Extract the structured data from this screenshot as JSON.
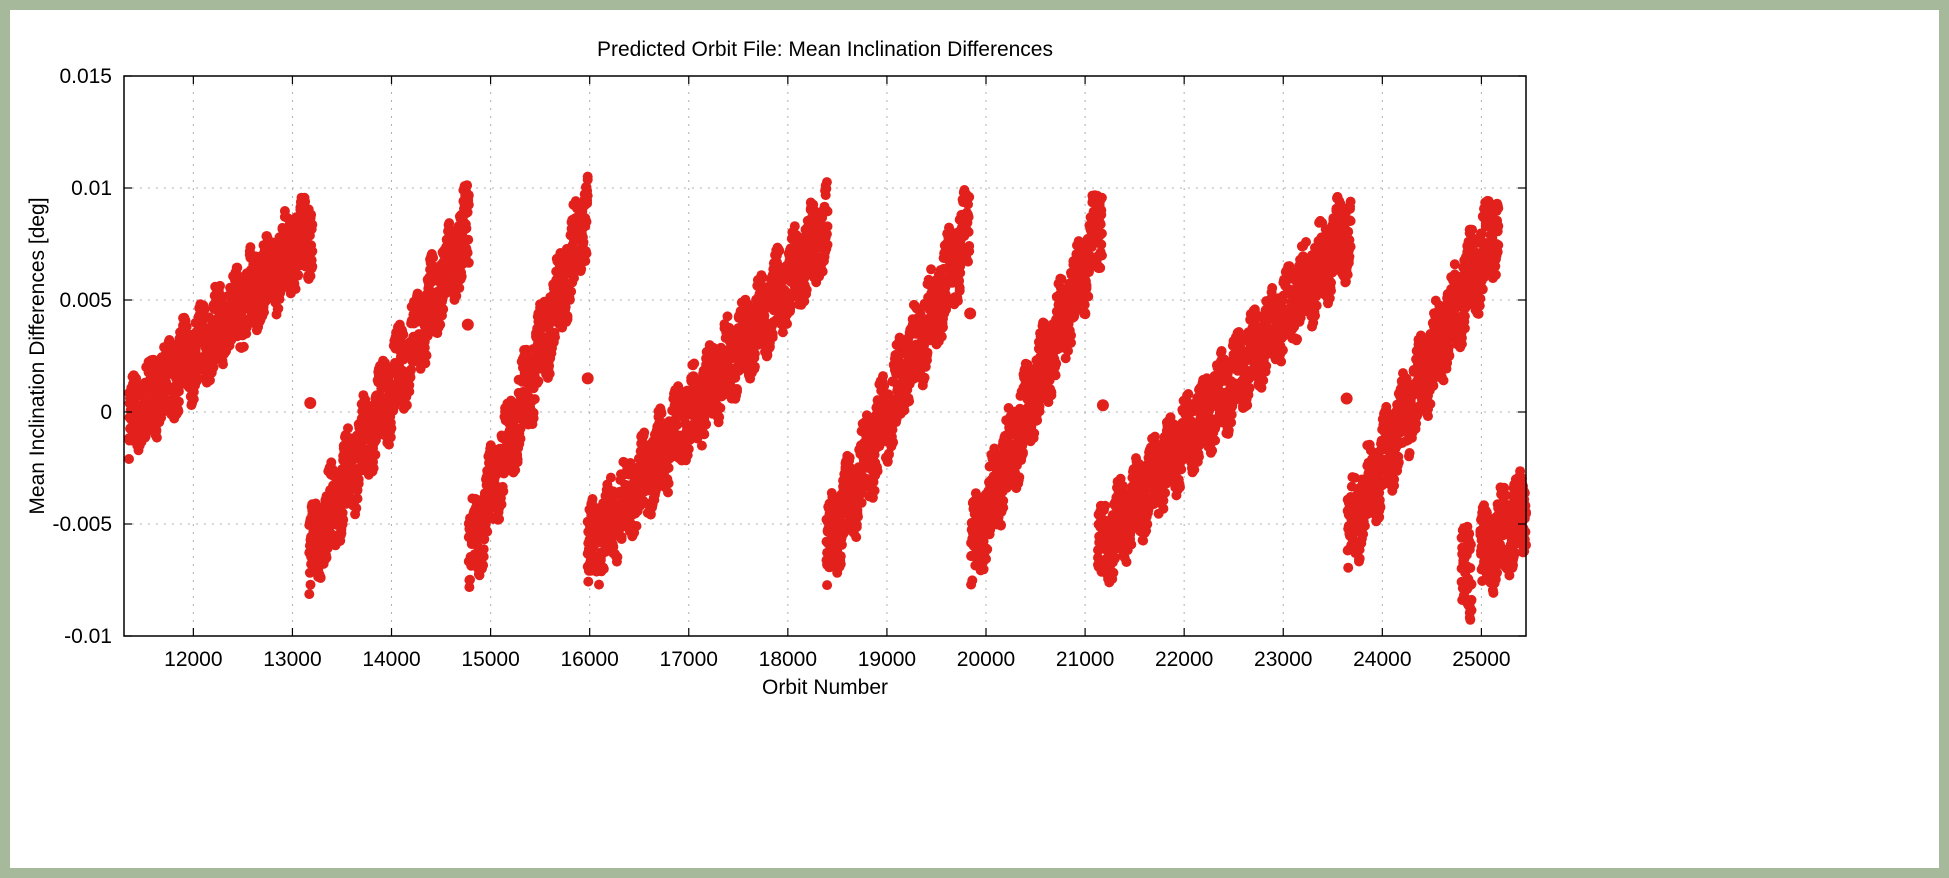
{
  "colors": {
    "frame_border": "#a6b99a",
    "background": "#ffffff",
    "series": "#e3211c",
    "grid": "#b0b0b0"
  },
  "chart_data": {
    "type": "scatter",
    "title": "Predicted Orbit File: Mean Inclination Differences",
    "xlabel": "Orbit Number",
    "ylabel": "Mean Inclination Differences [deg]",
    "xlim": [
      11300,
      25450
    ],
    "ylim": [
      -0.01,
      0.015
    ],
    "x_ticks": [
      12000,
      13000,
      14000,
      15000,
      16000,
      17000,
      18000,
      19000,
      20000,
      21000,
      22000,
      23000,
      24000,
      25000
    ],
    "x_tick_labels": [
      "12000",
      "13000",
      "14000",
      "15000",
      "16000",
      "17000",
      "18000",
      "19000",
      "20000",
      "21000",
      "22000",
      "23000",
      "24000",
      "25000"
    ],
    "y_ticks": [
      -0.01,
      -0.005,
      0,
      0.005,
      0.01,
      0.015
    ],
    "y_tick_labels": [
      "-0.01",
      "-0.005",
      "0",
      "0.005",
      "0.01",
      "0.015"
    ],
    "grid": true,
    "marker": "filled-circle",
    "series": [
      {
        "color": "#e3211c",
        "segments": [
          {
            "x": [
              11350,
              13200
            ],
            "y": [
              -0.0005,
              0.0082
            ],
            "spread": 0.0032
          },
          {
            "x": [
              13170,
              14780
            ],
            "y": [
              -0.0065,
              0.0082
            ],
            "spread": 0.0034
          },
          {
            "x": [
              14780,
              15980
            ],
            "y": [
              -0.0065,
              0.0088
            ],
            "spread": 0.0034
          },
          {
            "x": [
              15980,
              18400
            ],
            "y": [
              -0.0063,
              0.0082
            ],
            "spread": 0.0032
          },
          {
            "x": [
              18390,
              19830
            ],
            "y": [
              -0.0063,
              0.0082
            ],
            "spread": 0.0034
          },
          {
            "x": [
              19850,
              21170
            ],
            "y": [
              -0.0063,
              0.0085
            ],
            "spread": 0.0034
          },
          {
            "x": [
              21130,
              23680
            ],
            "y": [
              -0.0063,
              0.0082
            ],
            "spread": 0.0032
          },
          {
            "x": [
              23650,
              25170
            ],
            "y": [
              -0.0055,
              0.0085
            ],
            "spread": 0.0034
          },
          {
            "x": [
              24800,
              24900
            ],
            "y": [
              -0.007,
              -0.0075
            ],
            "spread": 0.0038
          },
          {
            "x": [
              24990,
              25450
            ],
            "y": [
              -0.0063,
              -0.0045
            ],
            "spread": 0.0034
          }
        ],
        "isolated_points": [
          {
            "x": 13180,
            "y": 0.0004
          },
          {
            "x": 14770,
            "y": 0.0039
          },
          {
            "x": 15980,
            "y": 0.0015
          },
          {
            "x": 19840,
            "y": 0.0044
          },
          {
            "x": 21180,
            "y": 0.0003
          },
          {
            "x": 23640,
            "y": 0.0006
          }
        ]
      }
    ]
  }
}
